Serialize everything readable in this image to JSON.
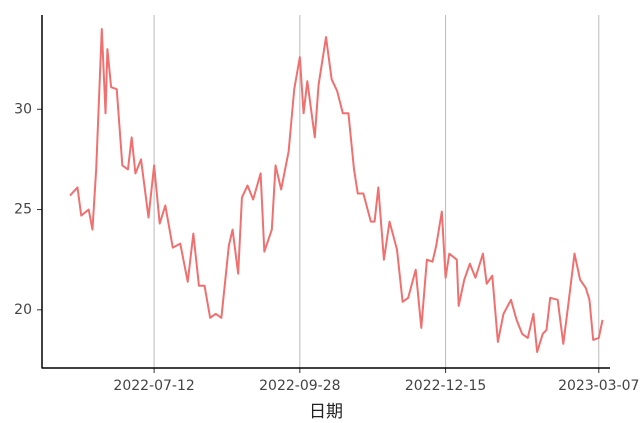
{
  "chart_data": {
    "type": "line",
    "x_label": "日期",
    "color": "#f07070",
    "grid": "x",
    "x": [
      "2022-05-28",
      "2022-06-01",
      "2022-06-03",
      "2022-06-07",
      "2022-06-09",
      "2022-06-11",
      "2022-06-14",
      "2022-06-16",
      "2022-06-17",
      "2022-06-19",
      "2022-06-22",
      "2022-06-25",
      "2022-06-28",
      "2022-06-30",
      "2022-07-02",
      "2022-07-05",
      "2022-07-09",
      "2022-07-12",
      "2022-07-15",
      "2022-07-18",
      "2022-07-22",
      "2022-07-26",
      "2022-07-30",
      "2022-08-02",
      "2022-08-05",
      "2022-08-08",
      "2022-08-11",
      "2022-08-14",
      "2022-08-17",
      "2022-08-21",
      "2022-08-23",
      "2022-08-26",
      "2022-08-28",
      "2022-08-31",
      "2022-09-03",
      "2022-09-07",
      "2022-09-09",
      "2022-09-13",
      "2022-09-15",
      "2022-09-18",
      "2022-09-22",
      "2022-09-25",
      "2022-09-28",
      "2022-09-30",
      "2022-10-02",
      "2022-10-06",
      "2022-10-08",
      "2022-10-12",
      "2022-10-15",
      "2022-10-18",
      "2022-10-21",
      "2022-10-24",
      "2022-10-27",
      "2022-10-29",
      "2022-11-01",
      "2022-11-05",
      "2022-11-07",
      "2022-11-09",
      "2022-11-12",
      "2022-11-15",
      "2022-11-19",
      "2022-11-22",
      "2022-11-25",
      "2022-11-29",
      "2022-12-02",
      "2022-12-05",
      "2022-12-08",
      "2022-12-10",
      "2022-12-13",
      "2022-12-15",
      "2022-12-17",
      "2022-12-21",
      "2022-12-22",
      "2022-12-25",
      "2022-12-28",
      "2022-12-31",
      "2023-01-04",
      "2023-01-06",
      "2023-01-09",
      "2023-01-12",
      "2023-01-15",
      "2023-01-19",
      "2023-01-22",
      "2023-01-25",
      "2023-01-28",
      "2023-01-31",
      "2023-02-02",
      "2023-02-05",
      "2023-02-07",
      "2023-02-09",
      "2023-02-13",
      "2023-02-16",
      "2023-02-19",
      "2023-02-22",
      "2023-02-25",
      "2023-02-28",
      "2023-03-02",
      "2023-03-04",
      "2023-03-07",
      "2023-03-09"
    ],
    "values": [
      25.7,
      26.1,
      24.7,
      25.0,
      24.0,
      27.0,
      34.0,
      29.8,
      33.0,
      31.1,
      31.0,
      27.2,
      27.0,
      28.6,
      26.8,
      27.5,
      24.6,
      27.2,
      24.3,
      25.2,
      23.1,
      23.3,
      21.4,
      23.8,
      21.2,
      21.2,
      19.6,
      19.8,
      19.6,
      23.2,
      24.0,
      21.8,
      25.6,
      26.2,
      25.5,
      26.8,
      22.9,
      24.0,
      27.2,
      26.0,
      27.9,
      31.0,
      32.6,
      29.8,
      31.4,
      28.6,
      31.2,
      33.6,
      31.5,
      30.9,
      29.8,
      29.8,
      27.0,
      25.8,
      25.8,
      24.4,
      24.4,
      26.1,
      22.5,
      24.4,
      23.0,
      20.4,
      20.6,
      22.0,
      19.1,
      22.5,
      22.4,
      23.2,
      24.9,
      21.6,
      22.8,
      22.5,
      20.2,
      21.5,
      22.3,
      21.6,
      22.8,
      21.3,
      21.7,
      18.4,
      19.8,
      20.5,
      19.5,
      18.8,
      18.6,
      19.8,
      17.9,
      18.8,
      19.0,
      20.6,
      20.5,
      18.3,
      20.5,
      22.8,
      21.5,
      21.1,
      20.5,
      18.5,
      18.6,
      19.5
    ],
    "xlim": [
      "2022-05-13",
      "2023-03-13"
    ],
    "xticks": [
      "2022-07-12",
      "2022-09-28",
      "2022-12-15",
      "2023-03-07"
    ],
    "ylim": [
      17.1,
      34.7
    ],
    "yticks": [
      20,
      25,
      30
    ]
  }
}
